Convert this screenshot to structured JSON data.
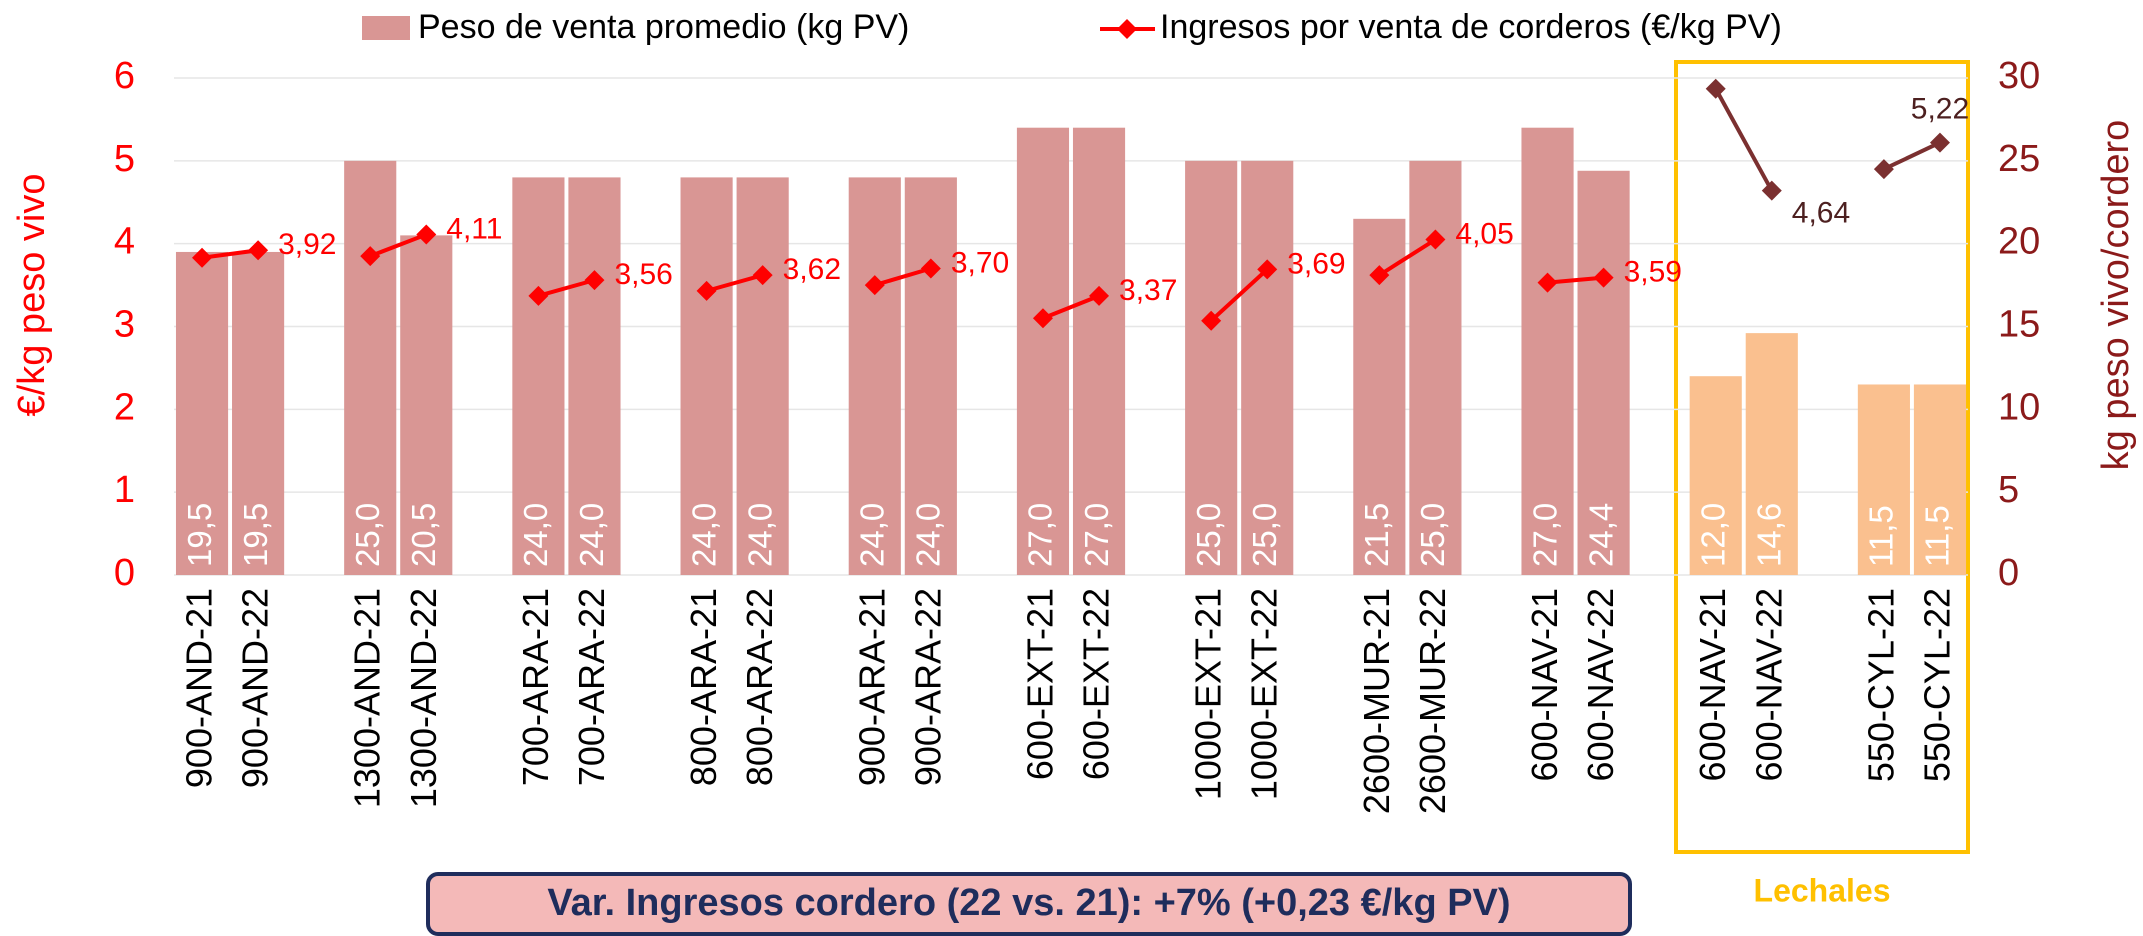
{
  "chart_data": {
    "type": "bar_line",
    "categories": [
      "900-AND-21",
      "900-AND-22",
      null,
      "1300-AND-21",
      "1300-AND-22",
      null,
      "700-ARA-21",
      "700-ARA-22",
      null,
      "800-ARA-21",
      "800-ARA-22",
      null,
      "900-ARA-21",
      "900-ARA-22",
      null,
      "600-EXT-21",
      "600-EXT-22",
      null,
      "1000-EXT-21",
      "1000-EXT-22",
      null,
      "2600-MUR-21",
      "2600-MUR-22",
      null,
      "600-NAV-21",
      "600-NAV-22",
      null,
      "600-NAV-21",
      "600-NAV-22",
      null,
      "550-CYL-21",
      "550-CYL-22"
    ],
    "series": [
      {
        "name": "Peso de venta promedio (kg PV)",
        "type": "bar",
        "axis": "y2",
        "color": "#d99694",
        "colors": [
          "#d99694",
          "#d99694",
          null,
          "#d99694",
          "#d99694",
          null,
          "#d99694",
          "#d99694",
          null,
          "#d99694",
          "#d99694",
          null,
          "#d99694",
          "#d99694",
          null,
          "#d99694",
          "#d99694",
          null,
          "#d99694",
          "#d99694",
          null,
          "#d99694",
          "#d99694",
          null,
          "#d99694",
          "#d99694",
          null,
          "#fac08f",
          "#fac08f",
          null,
          "#fac08f",
          "#fac08f"
        ],
        "values": [
          19.5,
          19.5,
          null,
          25.0,
          20.5,
          null,
          24.0,
          24.0,
          null,
          24.0,
          24.0,
          null,
          24.0,
          24.0,
          null,
          27.0,
          27.0,
          null,
          25.0,
          25.0,
          null,
          21.5,
          25.0,
          null,
          27.0,
          24.4,
          null,
          12.0,
          14.6,
          null,
          11.5,
          11.5
        ],
        "value_labels": [
          "19,5",
          "19,5",
          null,
          "25,0",
          "20,5",
          null,
          "24,0",
          "24,0",
          null,
          "24,0",
          "24,0",
          null,
          "24,0",
          "24,0",
          null,
          "27,0",
          "27,0",
          null,
          "25,0",
          "25,0",
          null,
          "21,5",
          "25,0",
          null,
          "27,0",
          "24,4",
          null,
          "12,0",
          "14,6",
          null,
          "11,5",
          "11,5"
        ]
      },
      {
        "name": "Ingresos por venta de corderos (€/kg PV)",
        "type": "line",
        "color": "#ff0000",
        "colors": [
          "#ff0000",
          "#ff0000",
          null,
          "#ff0000",
          "#ff0000",
          null,
          "#ff0000",
          "#ff0000",
          null,
          "#ff0000",
          "#ff0000",
          null,
          "#ff0000",
          "#ff0000",
          null,
          "#ff0000",
          "#ff0000",
          null,
          "#ff0000",
          "#ff0000",
          null,
          "#ff0000",
          "#ff0000",
          null,
          "#ff0000",
          "#ff0000",
          null,
          "#7b3030",
          "#7b3030",
          null,
          "#7b3030",
          "#7b3030"
        ],
        "values": [
          3.83,
          3.92,
          null,
          3.85,
          4.11,
          null,
          3.37,
          3.56,
          null,
          3.43,
          3.62,
          null,
          3.5,
          3.7,
          null,
          3.1,
          3.37,
          null,
          3.07,
          3.69,
          null,
          3.62,
          4.05,
          null,
          3.53,
          3.59,
          null,
          5.87,
          4.64,
          null,
          4.9,
          5.22
        ],
        "value_labels": [
          null,
          "3,92",
          null,
          null,
          "4,11",
          null,
          null,
          "3,56",
          null,
          null,
          "3,62",
          null,
          null,
          "3,70",
          null,
          null,
          "3,37",
          null,
          null,
          "3,69",
          null,
          null,
          "4,05",
          null,
          null,
          "3,59",
          null,
          null,
          "4,64",
          null,
          null,
          "5,22"
        ]
      }
    ],
    "ylabel": "€/kg peso vivo",
    "y2label": "kg peso vivo/cordero",
    "ylim": [
      0,
      6
    ],
    "yticks": [
      0,
      1,
      2,
      3,
      4,
      5,
      6
    ],
    "y2lim": [
      0,
      30
    ],
    "y2ticks": [
      0,
      5,
      10,
      15,
      20,
      25,
      30
    ],
    "grid": true,
    "annotations": [
      "Lechales",
      "Var. Ingresos cordero (22 vs. 21): +7% (+0,23 €/kg PV)"
    ]
  }
}
